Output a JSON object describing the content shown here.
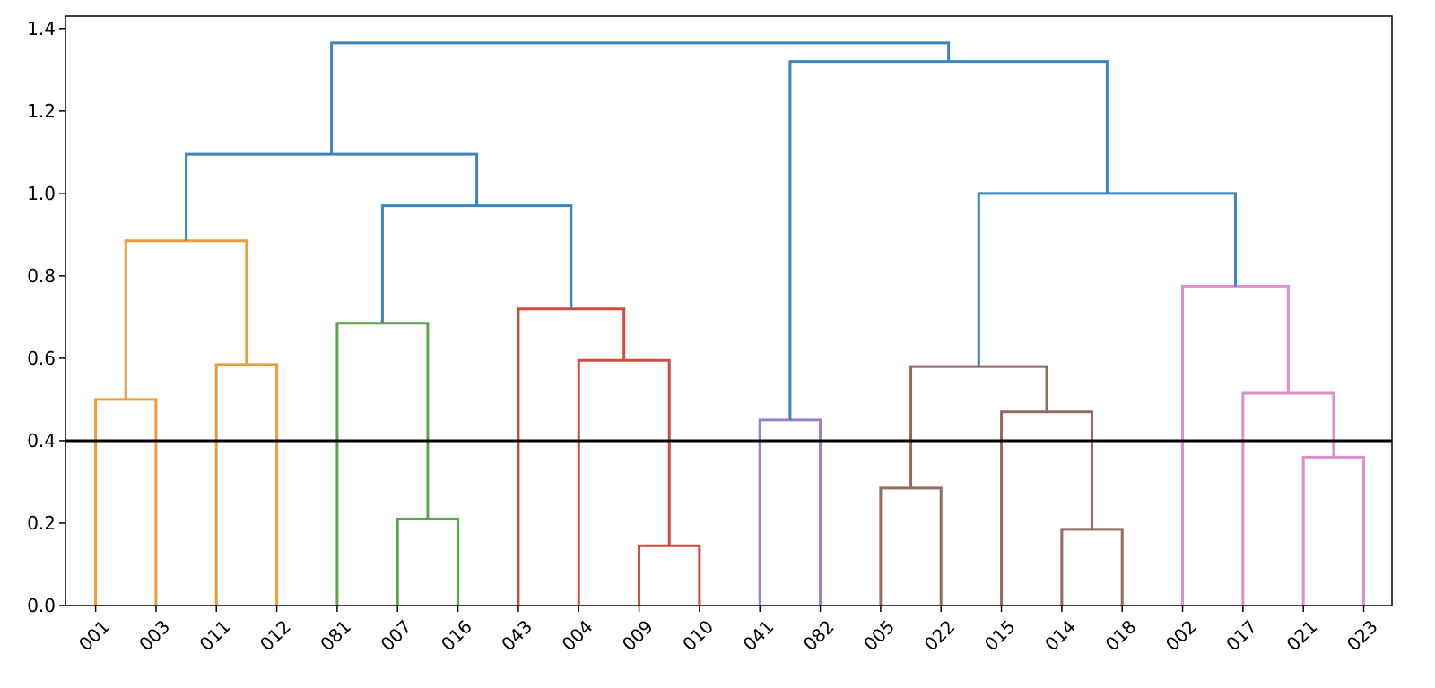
{
  "chart_data": {
    "type": "dendrogram",
    "title": "",
    "xlabel": "",
    "ylabel": "",
    "ylim": [
      0,
      1.43
    ],
    "y_ticks": [
      "0.0",
      "0.2",
      "0.4",
      "0.6",
      "0.8",
      "1.0",
      "1.2",
      "1.4"
    ],
    "grid": false,
    "leaves": [
      "001",
      "003",
      "011",
      "012",
      "081",
      "007",
      "016",
      "043",
      "004",
      "009",
      "010",
      "041",
      "082",
      "005",
      "022",
      "015",
      "014",
      "018",
      "002",
      "017",
      "021",
      "023"
    ],
    "threshold": 0.4,
    "threshold_color": "#000000",
    "merges": [
      {
        "left": "L0",
        "right": "L1",
        "height": 0.5,
        "color": "#ed9b3c"
      },
      {
        "left": "L2",
        "right": "L3",
        "height": 0.585,
        "color": "#ed9b3c"
      },
      {
        "left": "M0",
        "right": "M1",
        "height": 0.885,
        "color": "#ed9b3c"
      },
      {
        "left": "L5",
        "right": "L6",
        "height": 0.21,
        "color": "#5aa64b"
      },
      {
        "left": "L4",
        "right": "M3",
        "height": 0.685,
        "color": "#5aa64b"
      },
      {
        "left": "L9",
        "right": "L10",
        "height": 0.145,
        "color": "#cc4c3e"
      },
      {
        "left": "L8",
        "right": "M5",
        "height": 0.595,
        "color": "#cc4c3e"
      },
      {
        "left": "L7",
        "right": "M6",
        "height": 0.72,
        "color": "#cc4c3e"
      },
      {
        "left": "M4",
        "right": "M7",
        "height": 0.97,
        "color": "#3f85bb"
      },
      {
        "left": "M2",
        "right": "M8",
        "height": 1.095,
        "color": "#3f85bb"
      },
      {
        "left": "L11",
        "right": "L12",
        "height": 0.45,
        "color": "#9b80c5"
      },
      {
        "left": "L13",
        "right": "L14",
        "height": 0.285,
        "color": "#956b61"
      },
      {
        "left": "L16",
        "right": "L17",
        "height": 0.185,
        "color": "#956b61"
      },
      {
        "left": "L15",
        "right": "M12",
        "height": 0.47,
        "color": "#956b61"
      },
      {
        "left": "M11",
        "right": "M13",
        "height": 0.58,
        "color": "#956b61"
      },
      {
        "left": "L20",
        "right": "L21",
        "height": 0.36,
        "color": "#dc8fc9"
      },
      {
        "left": "L19",
        "right": "M15",
        "height": 0.515,
        "color": "#dc8fc9"
      },
      {
        "left": "L18",
        "right": "M16",
        "height": 0.775,
        "color": "#dc8fc9"
      },
      {
        "left": "M14",
        "right": "M17",
        "height": 1.0,
        "color": "#3f85bb"
      },
      {
        "left": "M10",
        "right": "M18",
        "height": 1.32,
        "color": "#3f85bb"
      },
      {
        "left": "M9",
        "right": "M19",
        "height": 1.365,
        "color": "#3f85bb"
      }
    ]
  }
}
